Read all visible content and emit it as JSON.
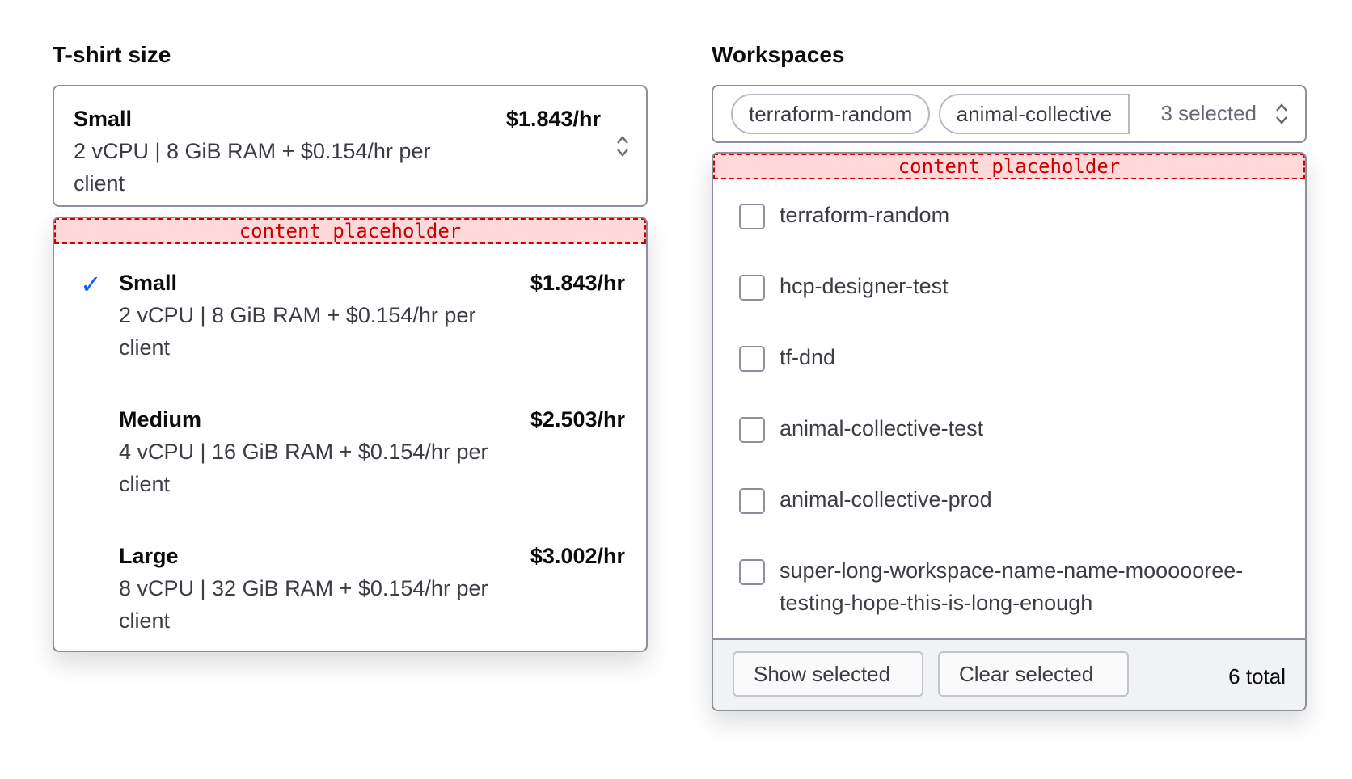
{
  "tshirt": {
    "label": "T-shirt size",
    "selected": {
      "name": "Small",
      "price": "$1.843/hr",
      "desc": "2 vCPU | 8 GiB RAM + $0.154/hr per client"
    },
    "placeholder": "content placeholder",
    "options": [
      {
        "name": "Small",
        "price": "$1.843/hr",
        "desc": "2 vCPU | 8 GiB RAM + $0.154/hr per client",
        "checked": true
      },
      {
        "name": "Medium",
        "price": "$2.503/hr",
        "desc": "4 vCPU | 16 GiB RAM + $0.154/hr per client",
        "checked": false
      },
      {
        "name": "Large",
        "price": "$3.002/hr",
        "desc": "8 vCPU | 32 GiB RAM + $0.154/hr per client",
        "checked": false
      }
    ]
  },
  "workspaces": {
    "label": "Workspaces",
    "pills": [
      "terraform-random",
      "animal-collective"
    ],
    "selected_count": "3 selected",
    "placeholder": "content placeholder",
    "items": [
      "terraform-random",
      "hcp-designer-test",
      "tf-dnd",
      "animal-collective-test",
      "animal-collective-prod",
      "super-long-workspace-name-name-moooooree-testing-hope-this-is-long-enough"
    ],
    "show_selected": "Show selected",
    "clear_selected": "Clear selected",
    "total": "6 total"
  },
  "colors": {
    "accent": "#1060ff",
    "placeholder_border": "#cc0000",
    "placeholder_bg": "#ffd9d9"
  }
}
